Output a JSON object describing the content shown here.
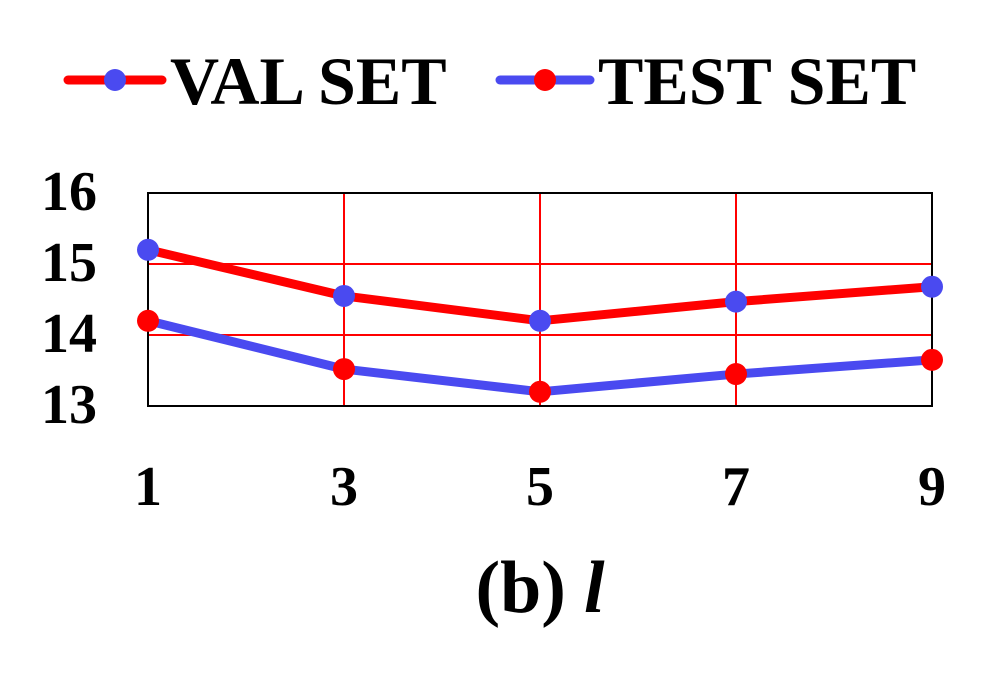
{
  "chart_data": {
    "type": "line",
    "title": "",
    "caption_prefix": "(b)",
    "caption_var": "l",
    "xlabel": "",
    "ylabel": "",
    "x": [
      1,
      3,
      5,
      7,
      9
    ],
    "xlim": [
      1,
      9
    ],
    "ylim": [
      13,
      16
    ],
    "yticks": [
      13,
      14,
      15,
      16
    ],
    "grid": true,
    "legend": "top",
    "series": [
      {
        "name": "VAL SET",
        "values": [
          15.2,
          14.55,
          14.2,
          14.47,
          14.68
        ],
        "line_color": "#ff0000",
        "marker_color": "#4a4af0"
      },
      {
        "name": "TEST SET",
        "values": [
          14.2,
          13.52,
          13.2,
          13.45,
          13.65
        ],
        "line_color": "#4a4af0",
        "marker_color": "#ff0000"
      }
    ]
  },
  "colors": {
    "grid": "#ff0000",
    "frame": "#000000",
    "text": "#000000"
  }
}
